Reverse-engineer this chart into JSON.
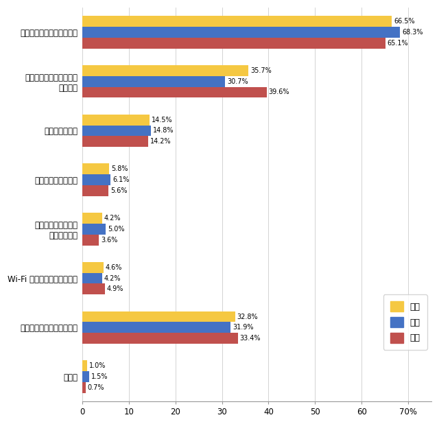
{
  "categories": [
    "その他",
    "自分に必要と思わないから",
    "Wi-Fi などの環境が無いから",
    "バッテリーの持ちが\n悪そうだから",
    "サイズが大きいから",
    "価格が高いから",
    "スマートフォンがあれば\n良いから",
    "パソコンがあれば良いから"
  ],
  "zentai": [
    1.0,
    32.8,
    4.6,
    4.2,
    5.8,
    14.5,
    35.7,
    66.5
  ],
  "dansei": [
    1.5,
    31.9,
    4.2,
    5.0,
    6.1,
    14.8,
    30.7,
    68.3
  ],
  "josei": [
    0.7,
    33.4,
    4.9,
    3.6,
    5.6,
    14.2,
    39.6,
    65.1
  ],
  "color_zentai": "#F5C842",
  "color_dansei": "#4472C4",
  "color_josei": "#C0504D",
  "xlim": [
    0,
    75
  ],
  "xticks": [
    0,
    10,
    20,
    30,
    40,
    50,
    60,
    70
  ],
  "xtick_labels": [
    "0",
    "10",
    "20",
    "30",
    "40",
    "50",
    "60",
    "70%"
  ],
  "legend_labels": [
    "全体",
    "男性",
    "女性"
  ],
  "bar_height": 0.22,
  "fontsize_label": 8.5,
  "fontsize_value": 7.0,
  "fontsize_xtick": 8.5,
  "fontsize_legend": 9
}
